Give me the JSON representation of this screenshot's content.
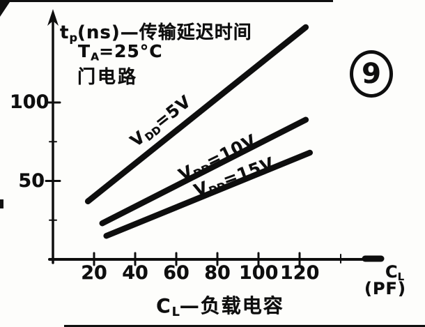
{
  "figure": {
    "number": "9"
  },
  "title": {
    "t": "t",
    "t_sub": "p",
    "rest": "(ns)—传输延迟时间"
  },
  "conditions": {
    "temp_main": "T",
    "temp_sub": "A",
    "temp_rest": "=25°C",
    "circuit": "门电路"
  },
  "axes": {
    "x_unit_main": "C",
    "x_unit_sub": "L",
    "x_unit_paren": "(PF)",
    "caption_main": "C",
    "caption_sub": "L",
    "caption_rest": "—负载电容"
  },
  "chart_data": {
    "type": "line",
    "title": "tp(ns)—传输延迟时间",
    "annotations": [
      "TA=25°C",
      "门电路"
    ],
    "figure_number": "9",
    "xlabel": "CL (PF)",
    "x_caption": "CL—负载电容",
    "ylabel": "tp (ns)",
    "xlim": [
      0,
      160
    ],
    "ylim": [
      0,
      155
    ],
    "x_ticks": [
      20,
      40,
      60,
      80,
      100,
      120
    ],
    "x_minor_ticks": [
      140
    ],
    "y_ticks": [
      50,
      100
    ],
    "y_minor_ticks": [
      25,
      75
    ],
    "grid": false,
    "legend": "labels-on-lines",
    "series": [
      {
        "name": "VDD=5V",
        "label_main": "V",
        "label_sub": "DD",
        "label_eq": "=5V",
        "x": [
          17,
          123
        ],
        "y": [
          37,
          148
        ]
      },
      {
        "name": "VDD=10V",
        "label_main": "V",
        "label_sub": "DD",
        "label_eq": "=10V",
        "x": [
          24,
          123
        ],
        "y": [
          23,
          89
        ]
      },
      {
        "name": "VDD=15V",
        "label_main": "V",
        "label_sub": "DD",
        "label_eq": "=15V",
        "x": [
          26,
          125
        ],
        "y": [
          15,
          68
        ]
      }
    ]
  }
}
